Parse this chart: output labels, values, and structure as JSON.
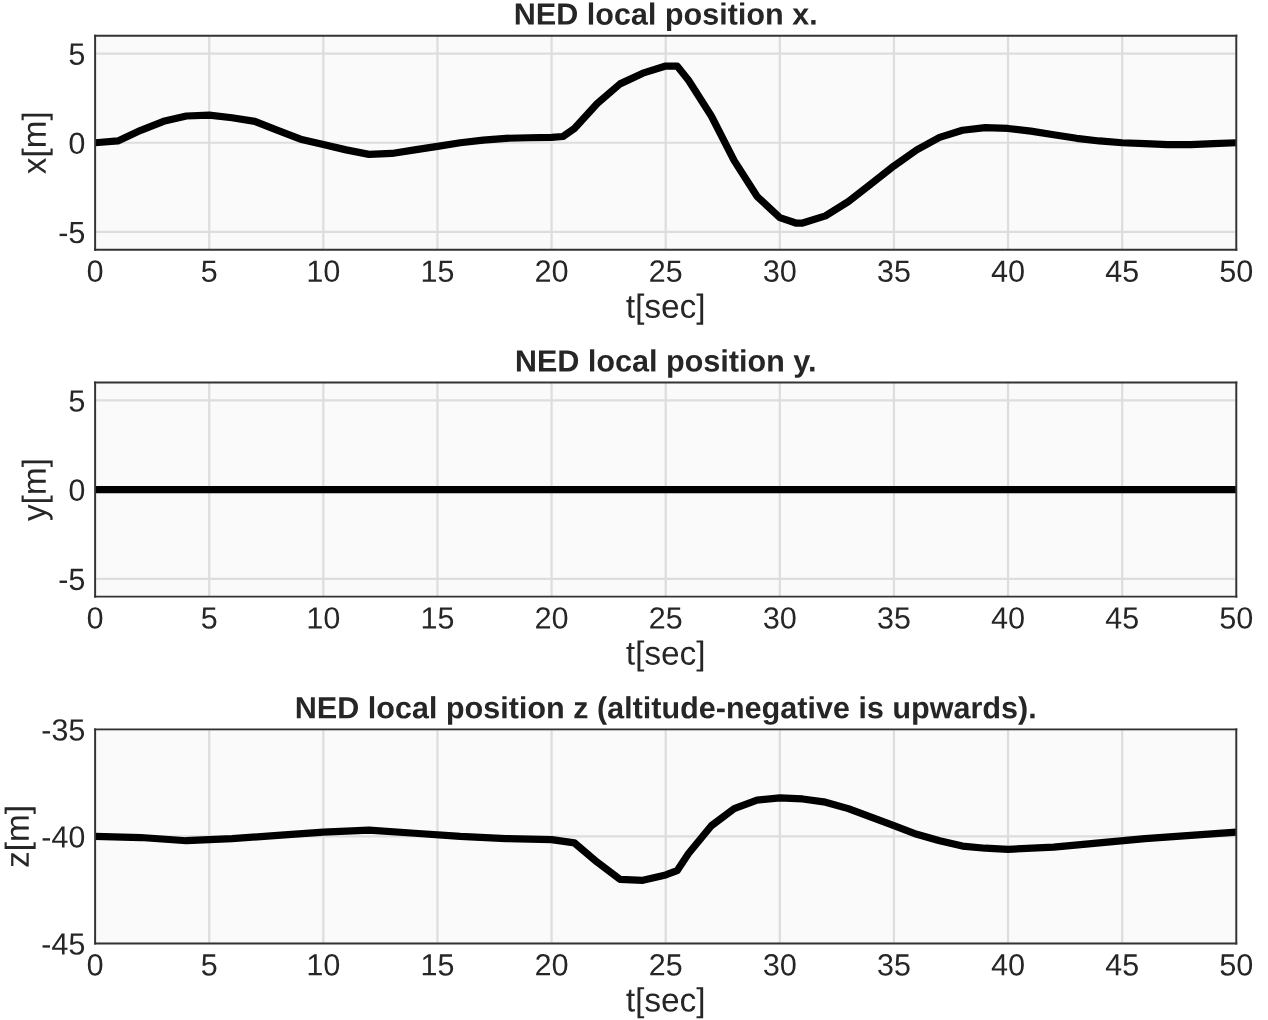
{
  "chart_data": [
    {
      "type": "line",
      "title": "NED local position x.",
      "xlabel": "t[sec]",
      "ylabel": "x[m]",
      "xlim": [
        0,
        50
      ],
      "xticks": [
        0,
        5,
        10,
        15,
        20,
        25,
        30,
        35,
        40,
        45,
        50
      ],
      "ylim": [
        -6,
        6
      ],
      "yticks": [
        -5,
        0,
        5
      ],
      "grid": true,
      "series": [
        {
          "color": "#000000",
          "x": [
            0,
            1,
            2,
            3,
            4,
            5,
            6,
            7,
            8,
            9,
            10,
            11,
            12,
            13,
            14,
            15,
            16,
            17,
            18,
            19,
            20,
            20.5,
            21,
            22,
            23,
            24,
            25,
            25.5,
            26,
            27,
            28,
            29,
            30,
            30.7,
            31,
            32,
            33,
            34,
            35,
            36,
            37,
            38,
            39,
            40,
            41,
            42,
            43,
            44,
            45,
            46,
            47,
            48,
            49,
            50
          ],
          "values": [
            0,
            0.1,
            0.7,
            1.2,
            1.5,
            1.55,
            1.4,
            1.2,
            0.7,
            0.2,
            -0.1,
            -0.4,
            -0.65,
            -0.6,
            -0.4,
            -0.2,
            0,
            0.15,
            0.25,
            0.28,
            0.3,
            0.35,
            0.8,
            2.2,
            3.3,
            3.9,
            4.3,
            4.3,
            3.5,
            1.5,
            -1,
            -3,
            -4.2,
            -4.5,
            -4.5,
            -4.1,
            -3.3,
            -2.3,
            -1.3,
            -0.4,
            0.3,
            0.7,
            0.85,
            0.8,
            0.65,
            0.45,
            0.25,
            0.1,
            0,
            -0.05,
            -0.1,
            -0.1,
            -0.05,
            0
          ]
        }
      ]
    },
    {
      "type": "line",
      "title": "NED local position y.",
      "xlabel": "t[sec]",
      "ylabel": "y[m]",
      "xlim": [
        0,
        50
      ],
      "xticks": [
        0,
        5,
        10,
        15,
        20,
        25,
        30,
        35,
        40,
        45,
        50
      ],
      "ylim": [
        -6,
        6
      ],
      "yticks": [
        -5,
        0,
        5
      ],
      "grid": true,
      "series": [
        {
          "color": "#000000",
          "x": [
            0,
            50
          ],
          "values": [
            0,
            0
          ]
        }
      ]
    },
    {
      "type": "line",
      "title": "NED local position z (altitude-negative is upwards).",
      "xlabel": "t[sec]",
      "ylabel": "z[m]",
      "xlim": [
        0,
        50
      ],
      "xticks": [
        0,
        5,
        10,
        15,
        20,
        25,
        30,
        35,
        40,
        45,
        50
      ],
      "ylim": [
        -45,
        -35
      ],
      "yticks": [
        -45,
        -40,
        -35
      ],
      "grid": true,
      "series": [
        {
          "color": "#000000",
          "x": [
            0,
            2,
            4,
            6,
            8,
            10,
            12,
            14,
            16,
            18,
            20,
            21,
            22,
            23,
            24,
            25,
            25.5,
            26,
            27,
            28,
            29,
            30,
            31,
            32,
            33,
            34,
            35,
            36,
            37,
            38,
            39,
            40,
            42,
            44,
            46,
            48,
            50
          ],
          "values": [
            -40,
            -40.05,
            -40.2,
            -40.1,
            -39.95,
            -39.8,
            -39.7,
            -39.85,
            -40,
            -40.1,
            -40.15,
            -40.3,
            -41.2,
            -42,
            -42.05,
            -41.8,
            -41.6,
            -40.8,
            -39.5,
            -38.7,
            -38.3,
            -38.2,
            -38.25,
            -38.4,
            -38.7,
            -39.1,
            -39.5,
            -39.9,
            -40.2,
            -40.45,
            -40.55,
            -40.6,
            -40.5,
            -40.3,
            -40.1,
            -39.95,
            -39.8
          ]
        }
      ]
    }
  ]
}
